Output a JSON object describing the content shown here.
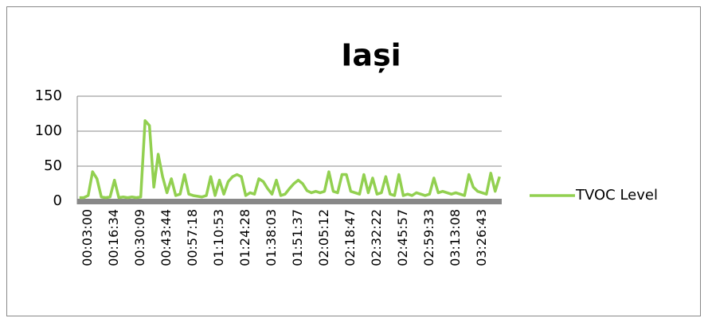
{
  "chart_data": {
    "type": "line",
    "title": "Iași",
    "categories": [
      null,
      null,
      "00:03:00",
      null,
      null,
      null,
      null,
      null,
      "00:16:34",
      null,
      null,
      null,
      null,
      null,
      "00:30:09",
      null,
      null,
      null,
      null,
      null,
      "00:43:44",
      null,
      null,
      null,
      null,
      null,
      "00:57:18",
      null,
      null,
      null,
      null,
      null,
      "01:10:53",
      null,
      null,
      null,
      null,
      null,
      "01:24:28",
      null,
      null,
      null,
      null,
      null,
      "01:38:03",
      null,
      null,
      null,
      null,
      null,
      "01:51:37",
      null,
      null,
      null,
      null,
      null,
      "02:05:12",
      null,
      null,
      null,
      null,
      null,
      "02:18:47",
      null,
      null,
      null,
      null,
      null,
      "02:32:22",
      null,
      null,
      null,
      null,
      null,
      "02:45:57",
      null,
      null,
      null,
      null,
      null,
      "02:59:33",
      null,
      null,
      null,
      null,
      null,
      "03:13:08",
      null,
      null,
      null,
      null,
      null,
      "03:26:43",
      null,
      null,
      null,
      null
    ],
    "series": [
      {
        "name": "TVOC Level",
        "color": "#92d050",
        "values": [
          5,
          5,
          8,
          42,
          32,
          6,
          5,
          6,
          30,
          5,
          6,
          5,
          6,
          5,
          6,
          115,
          108,
          20,
          67,
          35,
          12,
          32,
          8,
          10,
          38,
          10,
          8,
          7,
          6,
          8,
          35,
          8,
          30,
          10,
          28,
          35,
          38,
          35,
          8,
          12,
          10,
          32,
          28,
          18,
          10,
          30,
          8,
          10,
          18,
          25,
          30,
          25,
          15,
          12,
          14,
          12,
          14,
          42,
          14,
          12,
          38,
          38,
          14,
          12,
          10,
          38,
          12,
          33,
          10,
          12,
          35,
          10,
          8,
          38,
          8,
          10,
          8,
          12,
          10,
          8,
          10,
          33,
          12,
          14,
          12,
          10,
          12,
          10,
          8,
          38,
          20,
          14,
          12,
          10,
          40,
          14,
          35
        ]
      }
    ],
    "ylim": [
      0,
      150
    ],
    "yticks": [
      0,
      50,
      100,
      150
    ],
    "grid": true,
    "legend": "right"
  }
}
